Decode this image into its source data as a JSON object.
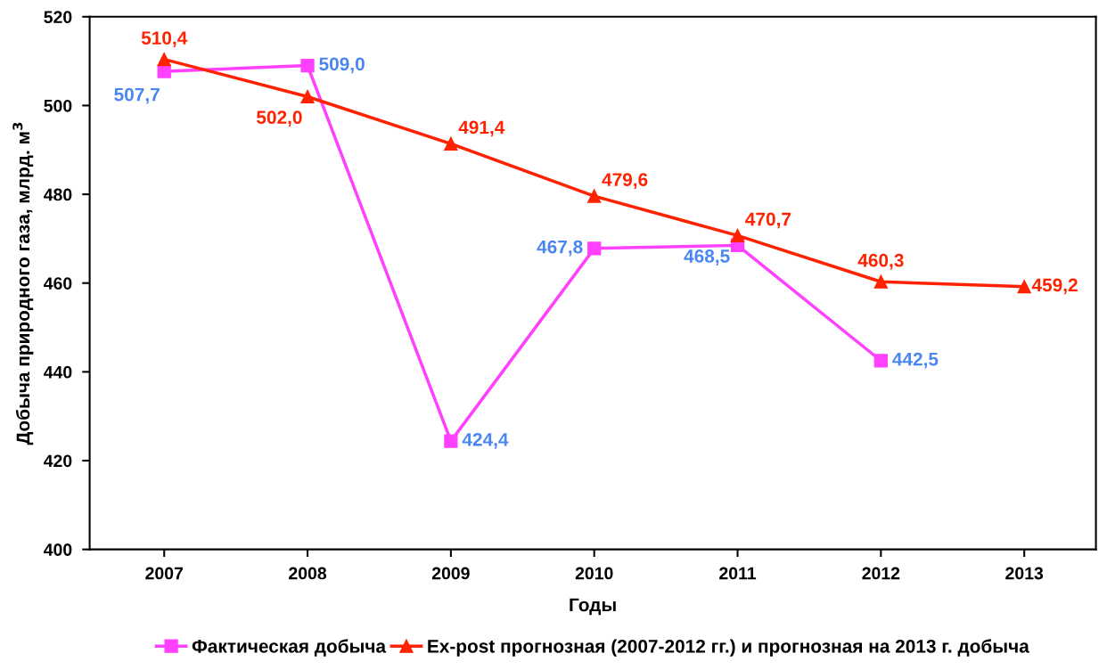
{
  "chart_data": {
    "type": "line",
    "xlabel": "Годы",
    "ylabel": "Добыча природного газа, млрд. м$^{3}$",
    "categories": [
      "2007",
      "2008",
      "2009",
      "2010",
      "2011",
      "2012",
      "2013"
    ],
    "ylim": [
      400,
      520
    ],
    "yticks": [
      400,
      420,
      440,
      460,
      480,
      500,
      520
    ],
    "grid": false,
    "legend": "bottom",
    "series": [
      {
        "name": "Фактическая добыча",
        "color": "#ff40ff",
        "marker": "square",
        "values": [
          507.7,
          509.0,
          424.4,
          467.8,
          468.5,
          442.5,
          null
        ],
        "value_labels": [
          "507,7",
          "509,0",
          "424,4",
          "467,8",
          "468,5",
          "442,5",
          null
        ]
      },
      {
        "name": "Ex-post прогнозная (2007-2012 гг.) и прогнозная на 2013 г. добыча",
        "color": "#ff2200",
        "marker": "triangle",
        "values": [
          510.4,
          502.0,
          491.4,
          479.6,
          470.7,
          460.3,
          459.2
        ],
        "value_labels": [
          "510,4",
          "502,0",
          "491,4",
          "479,6",
          "470,7",
          "460,3",
          "459,2"
        ]
      }
    ]
  }
}
